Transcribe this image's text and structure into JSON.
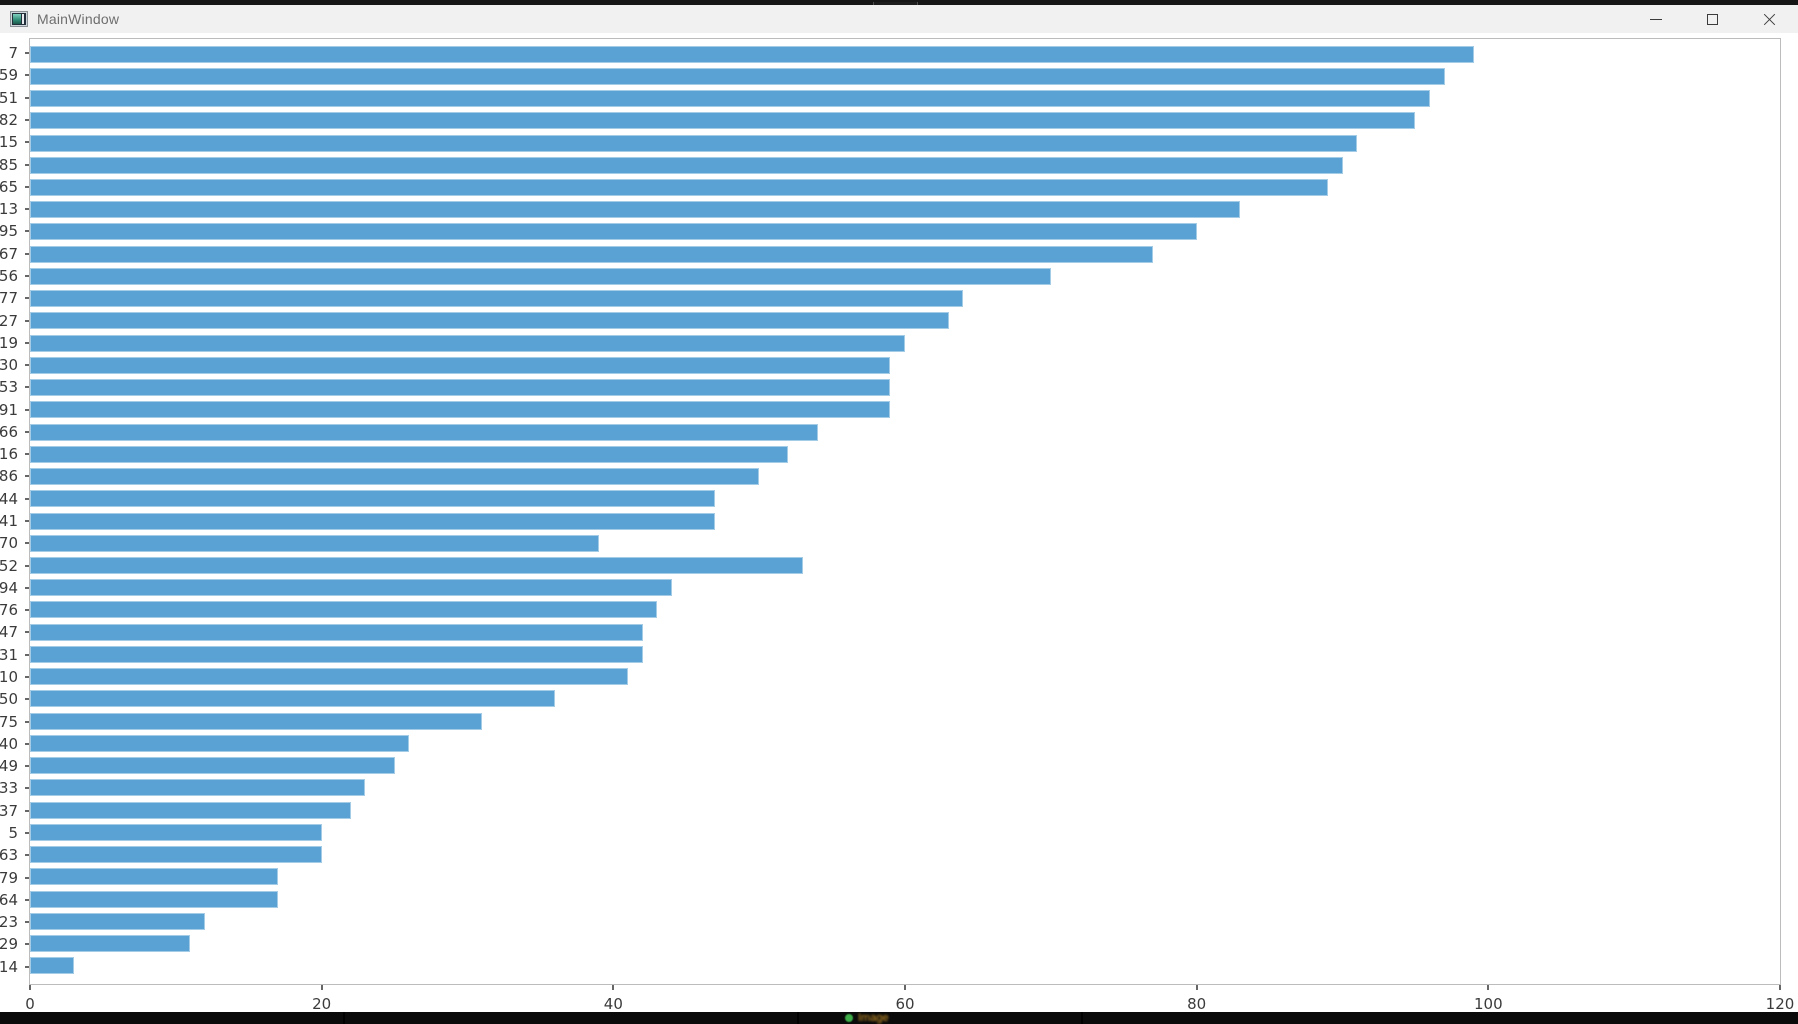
{
  "window": {
    "title": "MainWindow",
    "titlebar_icon": "app-window-icon",
    "controls": [
      {
        "name": "minimize",
        "icon": "minimize-icon"
      },
      {
        "name": "maximize",
        "icon": "maximize-icon"
      },
      {
        "name": "close",
        "icon": "close-icon"
      }
    ],
    "colors": {
      "titlebar_bg": "#f1f1f1",
      "title_text": "#6e6e6e"
    }
  },
  "overlay": {
    "top_handle_icon": "grip-handle-icon"
  },
  "background_apps": {
    "bottom_status_text": "Image",
    "bottom_dot_color": "#3fae49"
  },
  "chart_data": {
    "type": "bar",
    "orientation": "horizontal",
    "title": "",
    "xlabel": "",
    "ylabel": "",
    "categories": [
      "7",
      "59",
      "51",
      "82",
      "15",
      "85",
      "65",
      "13",
      "95",
      "67",
      "56",
      "77",
      "27",
      "19",
      "30",
      "53",
      "91",
      "66",
      "16",
      "86",
      "44",
      "41",
      "70",
      "52",
      "94",
      "76",
      "47",
      "31",
      "10",
      "50",
      "75",
      "40",
      "49",
      "33",
      "37",
      "5",
      "63",
      "79",
      "64",
      "23",
      "29",
      "14"
    ],
    "values": [
      99,
      97,
      96,
      95,
      91,
      90,
      89,
      83,
      80,
      77,
      70,
      64,
      63,
      60,
      59,
      59,
      59,
      54,
      52,
      50,
      47,
      47,
      39,
      53,
      44,
      43,
      42,
      42,
      41,
      36,
      31,
      26,
      25,
      23,
      22,
      20,
      20,
      17,
      17,
      12,
      11,
      3
    ],
    "xlim": [
      0,
      120
    ],
    "x_ticks": [
      0,
      20,
      40,
      60,
      80,
      100,
      120
    ],
    "grid": false,
    "legend": null,
    "bar_color": "#5aa2d4",
    "axis_color": "#bcbcbc",
    "tick_color": "#666666",
    "label_color": "#3b3b3b"
  }
}
